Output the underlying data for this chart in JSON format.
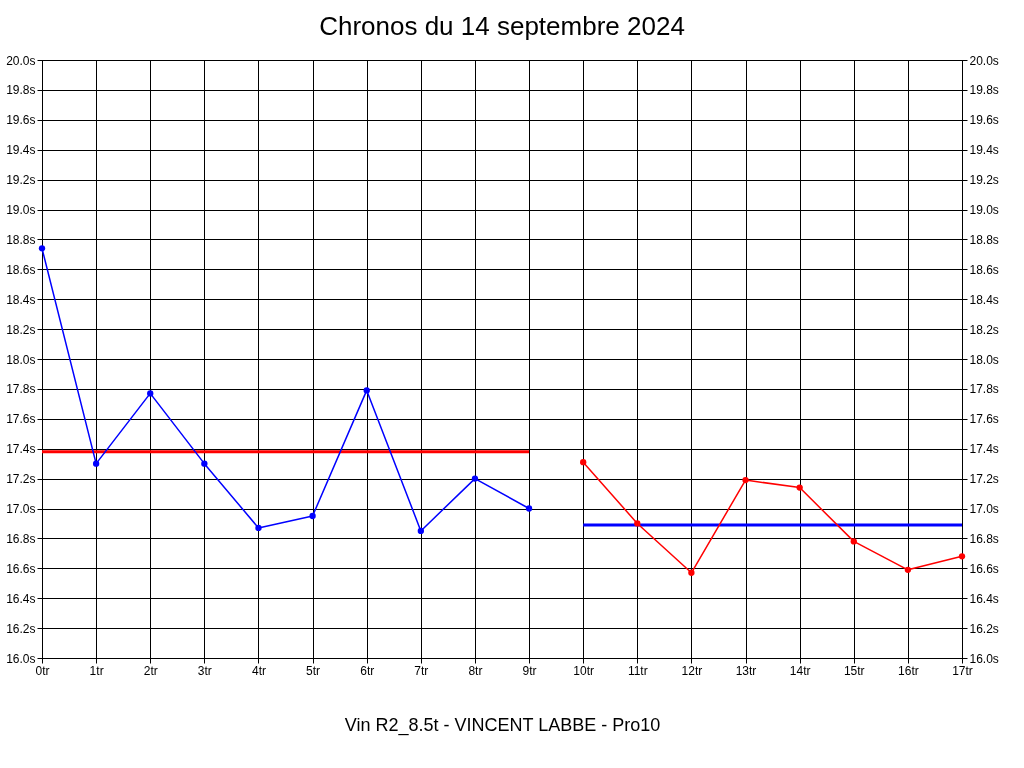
{
  "chart_data": {
    "type": "line",
    "title": "Chronos du 14 septembre 2024",
    "xlabel": "Vin R2_8.5t - VINCENT LABBE - Pro10",
    "categories": [
      "0tr",
      "1tr",
      "2tr",
      "3tr",
      "4tr",
      "5tr",
      "6tr",
      "7tr",
      "8tr",
      "9tr",
      "10tr",
      "11tr",
      "12tr",
      "13tr",
      "14tr",
      "15tr",
      "16tr",
      "17tr"
    ],
    "series": [
      {
        "color": "#0000ff",
        "marker": "circle",
        "values": [
          18.74,
          17.3,
          17.77,
          17.3,
          16.87,
          16.95,
          17.79,
          16.85,
          17.2,
          17.0,
          null,
          null,
          null,
          null,
          null,
          null,
          null,
          null
        ]
      },
      {
        "color": "#ff0000",
        "marker": "circle",
        "values": [
          null,
          null,
          null,
          null,
          null,
          null,
          null,
          null,
          null,
          null,
          17.31,
          16.9,
          16.57,
          17.19,
          17.14,
          16.78,
          16.59,
          16.68
        ]
      },
      {
        "color": "#ff0000",
        "marker": "none",
        "values": [
          17.38,
          17.38,
          17.38,
          17.38,
          17.38,
          17.38,
          17.38,
          17.38,
          17.38,
          17.38,
          null,
          null,
          null,
          null,
          null,
          null,
          null,
          null
        ]
      },
      {
        "color": "#0000ff",
        "marker": "none",
        "values": [
          null,
          null,
          null,
          null,
          null,
          null,
          null,
          null,
          null,
          null,
          16.89,
          16.89,
          16.89,
          16.89,
          16.89,
          16.89,
          16.89,
          16.89
        ]
      }
    ],
    "ylim": [
      16,
      20
    ],
    "yticks": [
      {
        "value": 16,
        "label": "16.0s"
      },
      {
        "value": 16.2,
        "label": "16.2s"
      },
      {
        "value": 16.4,
        "label": "16.4s"
      },
      {
        "value": 16.6,
        "label": "16.6s"
      },
      {
        "value": 16.8,
        "label": "16.8s"
      },
      {
        "value": 17,
        "label": "17.0s"
      },
      {
        "value": 17.2,
        "label": "17.2s"
      },
      {
        "value": 17.4,
        "label": "17.4s"
      },
      {
        "value": 17.6,
        "label": "17.6s"
      },
      {
        "value": 17.8,
        "label": "17.8s"
      },
      {
        "value": 18,
        "label": "18.0s"
      },
      {
        "value": 18.2,
        "label": "18.2s"
      },
      {
        "value": 18.4,
        "label": "18.4s"
      },
      {
        "value": 18.6,
        "label": "18.6s"
      },
      {
        "value": 18.8,
        "label": "18.8s"
      },
      {
        "value": 19,
        "label": "19.0s"
      },
      {
        "value": 19.2,
        "label": "19.2s"
      },
      {
        "value": 19.4,
        "label": "19.4s"
      },
      {
        "value": 19.6,
        "label": "19.6s"
      },
      {
        "value": 19.8,
        "label": "19.8s"
      },
      {
        "value": 20,
        "label": "20.0s"
      }
    ],
    "y2lim": [
      16,
      20
    ],
    "y2ticks": [
      {
        "value": 16,
        "label": "16.0s"
      },
      {
        "value": 16.2,
        "label": "16.2s"
      },
      {
        "value": 16.4,
        "label": "16.4s"
      },
      {
        "value": 16.6,
        "label": "16.6s"
      },
      {
        "value": 16.8,
        "label": "16.8s"
      },
      {
        "value": 17,
        "label": "17.0s"
      },
      {
        "value": 17.2,
        "label": "17.2s"
      },
      {
        "value": 17.4,
        "label": "17.4s"
      },
      {
        "value": 17.6,
        "label": "17.6s"
      },
      {
        "value": 17.8,
        "label": "17.8s"
      },
      {
        "value": 18,
        "label": "18.0s"
      },
      {
        "value": 18.2,
        "label": "18.2s"
      },
      {
        "value": 18.4,
        "label": "18.4s"
      },
      {
        "value": 18.6,
        "label": "18.6s"
      },
      {
        "value": 18.8,
        "label": "18.8s"
      },
      {
        "value": 19,
        "label": "19.0s"
      },
      {
        "value": 19.2,
        "label": "19.2s"
      },
      {
        "value": 19.4,
        "label": "19.4s"
      },
      {
        "value": 19.6,
        "label": "19.6s"
      },
      {
        "value": 19.8,
        "label": "19.8s"
      },
      {
        "value": 20,
        "label": "20.0s"
      }
    ],
    "grid": true
  }
}
